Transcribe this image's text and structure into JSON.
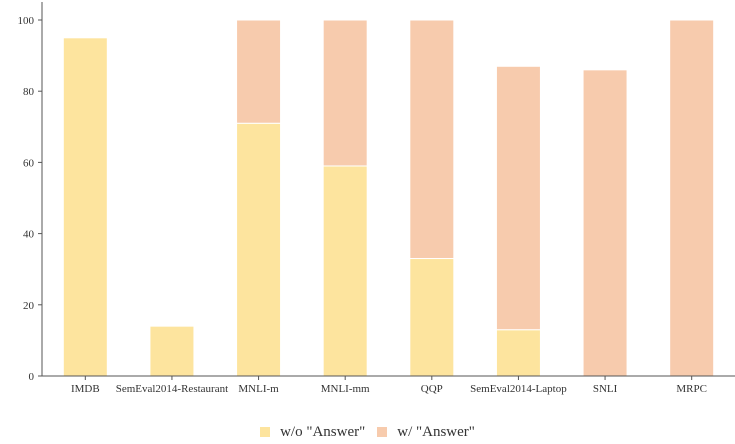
{
  "chart_data": {
    "type": "bar",
    "stacked": true,
    "categories": [
      "IMDB",
      "SemEval2014-Restaurant",
      "MNLI-m",
      "MNLI-mm",
      "QQP",
      "SemEval2014-Laptop",
      "SNLI",
      "MRPC"
    ],
    "series": [
      {
        "name": "w/o \"Answer\"",
        "color": "#fde49e",
        "values": [
          95,
          14,
          71,
          59,
          33,
          13,
          0,
          0
        ]
      },
      {
        "name": "w/ \"Answer\"",
        "color": "#f7cbad",
        "values": [
          0,
          0,
          29,
          41,
          67,
          74,
          86,
          100
        ]
      }
    ],
    "ylim": [
      0,
      100
    ],
    "yticks": [
      0,
      20,
      40,
      60,
      80,
      100
    ],
    "title": "",
    "xlabel": "",
    "ylabel": "",
    "grid": false,
    "legend_position": "bottom-center"
  }
}
